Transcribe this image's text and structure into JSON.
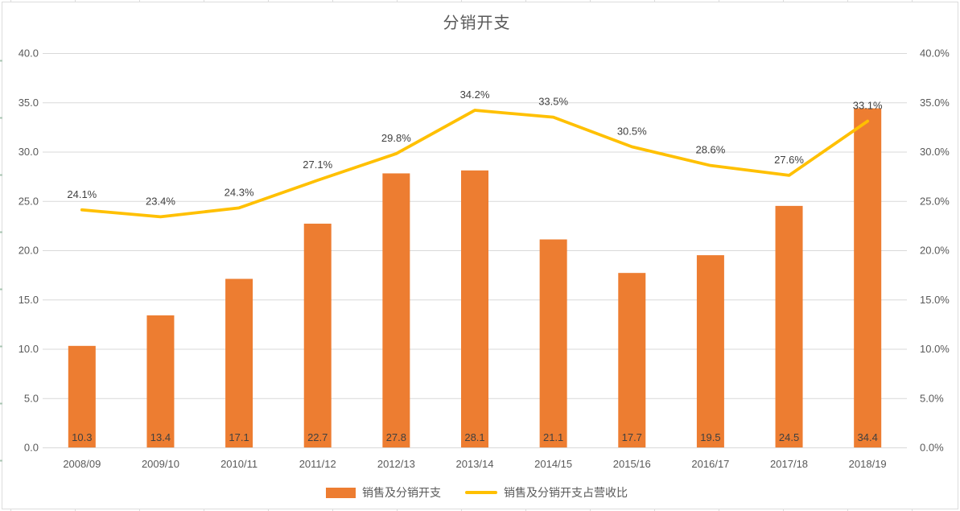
{
  "chart_data": {
    "type": "bar",
    "combo": "bar + line, dual axis",
    "title": "分销开支",
    "categories": [
      "2008/09",
      "2009/10",
      "2010/11",
      "2011/12",
      "2012/13",
      "2013/14",
      "2014/15",
      "2015/16",
      "2016/17",
      "2017/18",
      "2018/19"
    ],
    "series": [
      {
        "name": "销售及分销开支",
        "kind": "bar",
        "axis": "left",
        "color": "#ED7D31",
        "values": [
          10.3,
          13.4,
          17.1,
          22.7,
          27.8,
          28.1,
          21.1,
          17.7,
          19.5,
          24.5,
          34.4
        ],
        "labels": [
          "10.3",
          "13.4",
          "17.1",
          "22.7",
          "27.8",
          "28.1",
          "21.1",
          "17.7",
          "19.5",
          "24.5",
          "34.4"
        ]
      },
      {
        "name": "销售及分销开支占营收比",
        "kind": "line",
        "axis": "right",
        "color": "#FFC000",
        "values": [
          24.1,
          23.4,
          24.3,
          27.1,
          29.8,
          34.2,
          33.5,
          30.5,
          28.6,
          27.6,
          33.1
        ],
        "labels": [
          "24.1%",
          "23.4%",
          "24.3%",
          "27.1%",
          "29.8%",
          "34.2%",
          "33.5%",
          "30.5%",
          "28.6%",
          "27.6%",
          "33.1%"
        ]
      }
    ],
    "left_axis": {
      "min": 0,
      "max": 40,
      "step": 5,
      "ticks": [
        "0.0",
        "5.0",
        "10.0",
        "15.0",
        "20.0",
        "25.0",
        "30.0",
        "35.0",
        "40.0"
      ]
    },
    "right_axis": {
      "min": 0,
      "max": 40,
      "step": 5,
      "ticks": [
        "0.0%",
        "5.0%",
        "10.0%",
        "15.0%",
        "20.0%",
        "25.0%",
        "30.0%",
        "35.0%",
        "40.0%"
      ]
    },
    "grid": true,
    "legend_position": "bottom"
  },
  "colors": {
    "bar": "#ED7D31",
    "line": "#FFC000",
    "grid": "#D9D9D9",
    "axis_text": "#595959",
    "data_label": "#404040",
    "title": "#595959",
    "frame": "#DCDCDC"
  }
}
